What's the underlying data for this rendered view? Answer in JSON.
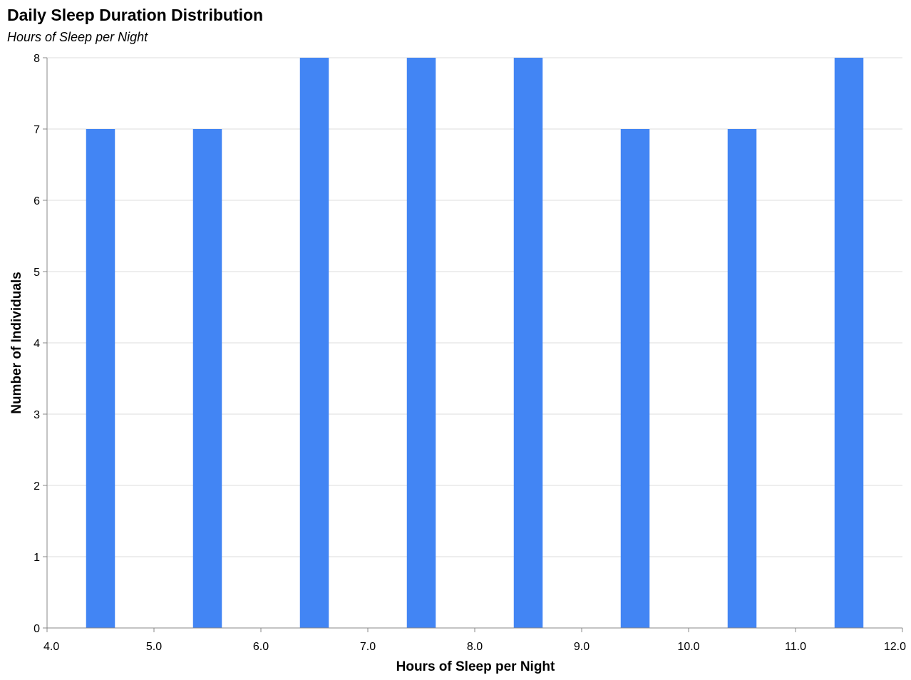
{
  "chart_data": {
    "type": "bar",
    "title": "Daily Sleep Duration Distribution",
    "subtitle": "Hours of Sleep per Night",
    "xlabel": "Hours of Sleep per Night",
    "ylabel": "Number of Individuals",
    "x": [
      4.5,
      5.5,
      6.5,
      7.5,
      8.5,
      9.5,
      10.5,
      11.5
    ],
    "values": [
      7,
      7,
      8,
      8,
      8,
      7,
      7,
      8
    ],
    "bar_width_hours": 0.27,
    "xlim": [
      4.0,
      12.0
    ],
    "ylim": [
      0,
      8
    ],
    "x_ticks": [
      "4.0",
      "5.0",
      "6.0",
      "7.0",
      "8.0",
      "9.0",
      "10.0",
      "11.0",
      "12.0"
    ],
    "y_ticks": [
      "0",
      "1",
      "2",
      "3",
      "4",
      "5",
      "6",
      "7",
      "8"
    ],
    "grid": true,
    "bar_color": "#4285f4",
    "grid_color": "#dddddd",
    "axis_color": "#888888"
  }
}
